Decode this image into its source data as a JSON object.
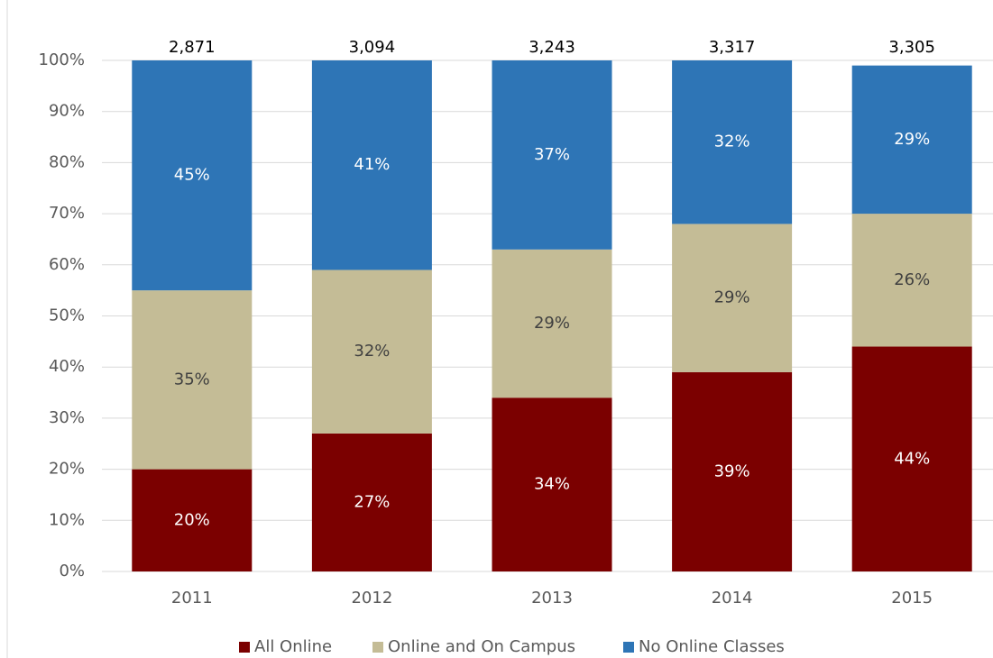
{
  "chart_data": {
    "type": "stacked_bar",
    "categories": [
      "2011",
      "2012",
      "2013",
      "2014",
      "2015"
    ],
    "series": [
      {
        "name": "All Online",
        "color": "#7b0000",
        "label_color": "#ffffff",
        "values": [
          20,
          27,
          34,
          39,
          44
        ],
        "value_labels": [
          "20%",
          "27%",
          "34%",
          "39%",
          "44%"
        ]
      },
      {
        "name": "Online and On Campus",
        "color": "#c4bc96",
        "label_color": "#404040",
        "values": [
          35,
          32,
          29,
          29,
          26
        ],
        "value_labels": [
          "35%",
          "32%",
          "29%",
          "29%",
          "26%"
        ]
      },
      {
        "name": "No Online Classes",
        "color": "#2e75b6",
        "label_color": "#ffffff",
        "values": [
          45,
          41,
          37,
          32,
          29
        ],
        "value_labels": [
          "45%",
          "41%",
          "37%",
          "32%",
          "29%"
        ]
      }
    ],
    "totals": {
      "values": [
        2871,
        3094,
        3243,
        3317,
        3305
      ],
      "value_labels": [
        "2,871",
        "3,094",
        "3,243",
        "3,317",
        "3,305"
      ]
    },
    "ylim": [
      0,
      100
    ],
    "yticks": [
      {
        "value": 0,
        "label": "0%"
      },
      {
        "value": 10,
        "label": "10%"
      },
      {
        "value": 20,
        "label": "20%"
      },
      {
        "value": 30,
        "label": "30%"
      },
      {
        "value": 40,
        "label": "40%"
      },
      {
        "value": 50,
        "label": "50%"
      },
      {
        "value": 60,
        "label": "60%"
      },
      {
        "value": 70,
        "label": "70%"
      },
      {
        "value": 80,
        "label": "80%"
      },
      {
        "value": 90,
        "label": "90%"
      },
      {
        "value": 100,
        "label": "100%"
      }
    ],
    "grid": true,
    "legend": "bottom"
  }
}
